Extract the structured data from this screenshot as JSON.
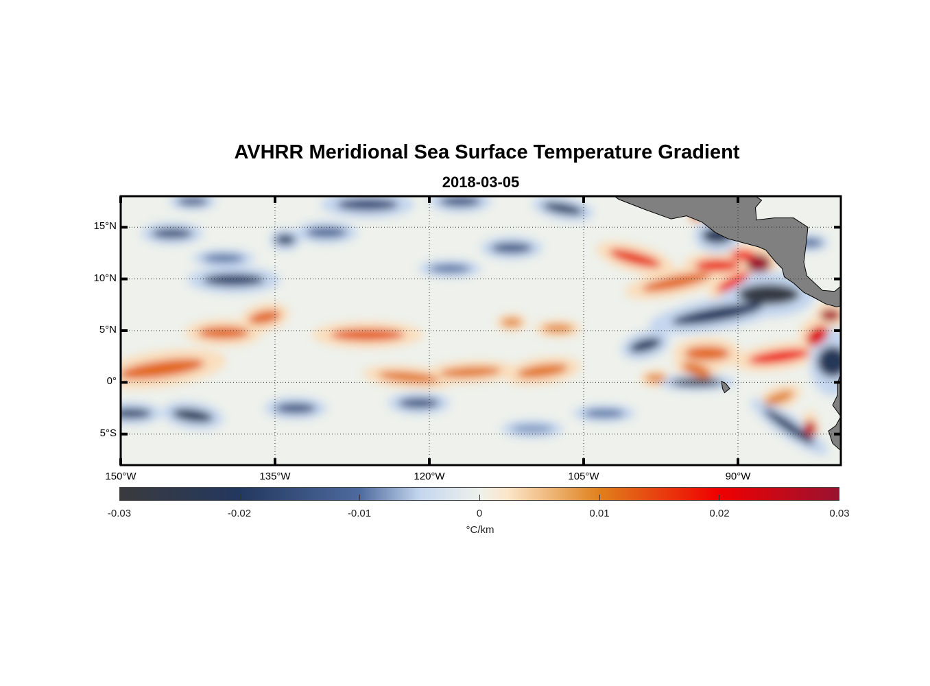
{
  "title": "AVHRR Meridional Sea Surface Temperature Gradient",
  "subtitle": "2018-03-05",
  "chart_data": {
    "type": "heatmap",
    "title": "AVHRR Meridional Sea Surface Temperature Gradient",
    "subtitle": "2018-03-05",
    "lon_range": [
      -150,
      -80
    ],
    "lat_range": [
      -8,
      18
    ],
    "x_ticks": [
      {
        "lon": -150,
        "label": "150°W"
      },
      {
        "lon": -135,
        "label": "135°W"
      },
      {
        "lon": -120,
        "label": "120°W"
      },
      {
        "lon": -105,
        "label": "105°W"
      },
      {
        "lon": -90,
        "label": "90°W"
      }
    ],
    "y_ticks": [
      {
        "lat": 15,
        "label": "15°N"
      },
      {
        "lat": 10,
        "label": "10°N"
      },
      {
        "lat": 5,
        "label": "5°N"
      },
      {
        "lat": 0,
        "label": "0°"
      },
      {
        "lat": -5,
        "label": "5°S"
      }
    ],
    "grid": true,
    "colorbar": {
      "range": [
        -0.03,
        0.03
      ],
      "ticks": [
        -0.03,
        -0.02,
        -0.01,
        0,
        0.01,
        0.02,
        0.03
      ],
      "tick_labels": [
        "-0.03",
        "-0.02",
        "-0.01",
        "0",
        "0.01",
        "0.02",
        "0.03"
      ],
      "units": "°C/km",
      "stops": [
        {
          "v": -0.03,
          "c": "#3a3a3e"
        },
        {
          "v": -0.02,
          "c": "#23385f"
        },
        {
          "v": -0.01,
          "c": "#4d6a9e"
        },
        {
          "v": -0.005,
          "c": "#c4d6ee"
        },
        {
          "v": 0,
          "c": "#eef1ec"
        },
        {
          "v": 0.0025,
          "c": "#fbe5c8"
        },
        {
          "v": 0.01,
          "c": "#e0801c"
        },
        {
          "v": 0.02,
          "c": "#ef0000"
        },
        {
          "v": 0.03,
          "c": "#9a1230"
        }
      ]
    },
    "features": [
      {
        "lon": -146,
        "lat": 1.3,
        "rlon": 4.2,
        "rlat": 0.8,
        "v": 0.012,
        "rot": -8
      },
      {
        "lon": -140,
        "lat": 4.8,
        "rlon": 2.5,
        "rlat": 0.6,
        "v": 0.012,
        "rot": 0
      },
      {
        "lon": -136,
        "lat": 6.3,
        "rlon": 1.6,
        "rlat": 0.6,
        "v": 0.012,
        "rot": -12
      },
      {
        "lon": -126,
        "lat": 4.6,
        "rlon": 3.6,
        "rlat": 0.6,
        "v": 0.013,
        "rot": 0
      },
      {
        "lon": -122,
        "lat": 0.5,
        "rlon": 3,
        "rlat": 0.5,
        "v": 0.011,
        "rot": 5
      },
      {
        "lon": -116,
        "lat": 1.0,
        "rlon": 3,
        "rlat": 0.5,
        "v": 0.011,
        "rot": -3
      },
      {
        "lon": -109,
        "lat": 1.1,
        "rlon": 2.5,
        "rlat": 0.6,
        "v": 0.011,
        "rot": -8
      },
      {
        "lon": -112,
        "lat": 5.8,
        "rlon": 1,
        "rlat": 0.4,
        "v": 0.01,
        "rot": 0
      },
      {
        "lon": -107.5,
        "lat": 5.2,
        "rlon": 1.5,
        "rlat": 0.4,
        "v": 0.01,
        "rot": 0
      },
      {
        "lon": -100,
        "lat": 12.0,
        "rlon": 2.6,
        "rlat": 0.6,
        "v": 0.016,
        "rot": 15
      },
      {
        "lon": -96,
        "lat": 9.7,
        "rlon": 3.4,
        "rlat": 0.6,
        "v": 0.012,
        "rot": -12
      },
      {
        "lon": -92,
        "lat": 11.3,
        "rlon": 2.2,
        "rlat": 0.6,
        "v": 0.017,
        "rot": 0
      },
      {
        "lon": -90.5,
        "lat": 9.7,
        "rlon": 1.8,
        "rlat": 0.5,
        "v": 0.02,
        "rot": -30
      },
      {
        "lon": -88,
        "lat": 11.5,
        "rlon": 1.2,
        "rlat": 0.9,
        "v": 0.03,
        "rot": 0
      },
      {
        "lon": -89.5,
        "lat": 12.3,
        "rlon": 1.2,
        "rlat": 0.5,
        "v": 0.02,
        "rot": 0
      },
      {
        "lon": -86,
        "lat": 2.5,
        "rlon": 3,
        "rlat": 0.6,
        "v": 0.02,
        "rot": -8
      },
      {
        "lon": -82.3,
        "lat": 4.5,
        "rlon": 1.2,
        "rlat": 0.8,
        "v": 0.022,
        "rot": -40
      },
      {
        "lon": -81,
        "lat": 6.5,
        "rlon": 1,
        "rlat": 0.6,
        "v": 0.028,
        "rot": 0
      },
      {
        "lon": -93,
        "lat": 2.8,
        "rlon": 2.2,
        "rlat": 0.7,
        "v": 0.012,
        "rot": 0
      },
      {
        "lon": -94,
        "lat": 1.2,
        "rlon": 1.5,
        "rlat": 0.6,
        "v": 0.011,
        "rot": 20
      },
      {
        "lon": -83,
        "lat": -4.5,
        "rlon": 0.6,
        "rlat": 0.8,
        "v": 0.025,
        "rot": 0
      },
      {
        "lon": -94,
        "lat": 16.0,
        "rlon": 0.6,
        "rlat": 0.3,
        "v": 0.025,
        "rot": 0
      },
      {
        "lon": -98,
        "lat": 0.4,
        "rlon": 1,
        "rlat": 0.4,
        "v": 0.01,
        "rot": 0
      },
      {
        "lon": -86,
        "lat": -1.5,
        "rlon": 1.5,
        "rlat": 0.5,
        "v": 0.01,
        "rot": -20
      },
      {
        "lon": -87,
        "lat": 8.5,
        "rlon": 3,
        "rlat": 1.0,
        "v": -0.028,
        "rot": 0
      },
      {
        "lon": -92,
        "lat": 6.6,
        "rlon": 4.5,
        "rlat": 0.7,
        "v": -0.02,
        "rot": -10
      },
      {
        "lon": -94,
        "lat": 0.0,
        "rlon": 2.5,
        "rlat": 0.4,
        "v": -0.026,
        "rot": 0
      },
      {
        "lon": -99,
        "lat": 3.6,
        "rlon": 1.6,
        "rlat": 0.6,
        "v": -0.02,
        "rot": -15
      },
      {
        "lon": -85,
        "lat": -4.3,
        "rlon": 3,
        "rlat": 0.5,
        "v": -0.02,
        "rot": 35
      },
      {
        "lon": -80.8,
        "lat": 2.0,
        "rlon": 1.5,
        "rlat": 1.5,
        "v": -0.022,
        "rot": 0
      },
      {
        "lon": -92,
        "lat": 14.2,
        "rlon": 1.5,
        "rlat": 0.8,
        "v": -0.022,
        "rot": 0
      },
      {
        "lon": -143,
        "lat": -3.2,
        "rlon": 2,
        "rlat": 0.6,
        "v": -0.022,
        "rot": 8
      },
      {
        "lon": -149,
        "lat": -3.0,
        "rlon": 2,
        "rlat": 0.5,
        "v": -0.018,
        "rot": 0
      },
      {
        "lon": -121,
        "lat": -2.0,
        "rlon": 2,
        "rlat": 0.5,
        "v": -0.015,
        "rot": 0
      },
      {
        "lon": -133,
        "lat": -2.5,
        "rlon": 2,
        "rlat": 0.5,
        "v": -0.015,
        "rot": 0
      },
      {
        "lon": -145,
        "lat": 14.4,
        "rlon": 2,
        "rlat": 0.5,
        "v": -0.016,
        "rot": 0
      },
      {
        "lon": -134,
        "lat": 13.8,
        "rlon": 1,
        "rlat": 0.5,
        "v": -0.02,
        "rot": 0
      },
      {
        "lon": -139,
        "lat": 9.9,
        "rlon": 3,
        "rlat": 0.6,
        "v": -0.018,
        "rot": 0
      },
      {
        "lon": -126,
        "lat": 17.2,
        "rlon": 3,
        "rlat": 0.6,
        "v": -0.016,
        "rot": 0
      },
      {
        "lon": -117,
        "lat": 17.5,
        "rlon": 2,
        "rlat": 0.5,
        "v": -0.015,
        "rot": 0
      },
      {
        "lon": -107,
        "lat": 16.8,
        "rlon": 2,
        "rlat": 0.5,
        "v": -0.02,
        "rot": 10
      },
      {
        "lon": -130,
        "lat": 14.5,
        "rlon": 2,
        "rlat": 0.5,
        "v": -0.012,
        "rot": 0
      },
      {
        "lon": -112,
        "lat": 13.0,
        "rlon": 2,
        "rlat": 0.5,
        "v": -0.015,
        "rot": 0
      },
      {
        "lon": -143,
        "lat": 17.5,
        "rlon": 1.5,
        "rlat": 0.4,
        "v": -0.015,
        "rot": 0
      },
      {
        "lon": -118,
        "lat": 11.0,
        "rlon": 2,
        "rlat": 0.4,
        "v": -0.01,
        "rot": 0
      },
      {
        "lon": -103,
        "lat": -3.0,
        "rlon": 2,
        "rlat": 0.4,
        "v": -0.01,
        "rot": 0
      },
      {
        "lon": -140,
        "lat": 12.0,
        "rlon": 2,
        "rlat": 0.4,
        "v": -0.01,
        "rot": 0
      },
      {
        "lon": -110,
        "lat": -4.5,
        "rlon": 2,
        "rlat": 0.4,
        "v": -0.008,
        "rot": 0
      },
      {
        "lon": -83,
        "lat": 13.5,
        "rlon": 1.2,
        "rlat": 0.4,
        "v": -0.012,
        "rot": 0
      }
    ],
    "land": [
      {
        "name": "central-america",
        "coords": [
          [
            -102,
            18
          ],
          [
            -101.6,
            17.7
          ],
          [
            -99,
            16.7
          ],
          [
            -96.5,
            15.8
          ],
          [
            -95,
            16.1
          ],
          [
            -93.5,
            15.5
          ],
          [
            -92.2,
            14.5
          ],
          [
            -91,
            13.9
          ],
          [
            -89.5,
            13.5
          ],
          [
            -88,
            13.1
          ],
          [
            -87.3,
            12.8
          ],
          [
            -86.3,
            11.6
          ],
          [
            -85.7,
            11
          ],
          [
            -85.5,
            10.2
          ],
          [
            -84.6,
            9.6
          ],
          [
            -83.6,
            8.7
          ],
          [
            -82.6,
            8.2
          ],
          [
            -81.5,
            7.6
          ],
          [
            -80.4,
            7.3
          ],
          [
            -80,
            7.4
          ],
          [
            -80,
            9.3
          ],
          [
            -80.6,
            8.8
          ],
          [
            -81.8,
            8.9
          ],
          [
            -83.3,
            10.3
          ],
          [
            -83.6,
            11.6
          ],
          [
            -83.4,
            13.2
          ],
          [
            -83.2,
            15
          ],
          [
            -84.6,
            15.9
          ],
          [
            -86.5,
            15.9
          ],
          [
            -88.2,
            15.7
          ],
          [
            -88.3,
            16.9
          ],
          [
            -87.7,
            17.6
          ],
          [
            -88.3,
            18
          ],
          [
            -102,
            18
          ]
        ]
      },
      {
        "name": "galapagos",
        "coords": [
          [
            -91.6,
            0.1
          ],
          [
            -91.2,
            -0.1
          ],
          [
            -90.8,
            -0.6
          ],
          [
            -91.3,
            -1.0
          ],
          [
            -91.5,
            -0.6
          ]
        ]
      },
      {
        "name": "south-america",
        "coords": [
          [
            -80,
            0.8
          ],
          [
            -80.3,
            0
          ],
          [
            -80.3,
            -1.2
          ],
          [
            -80.8,
            -2.2
          ],
          [
            -80,
            -3.3
          ],
          [
            -80.5,
            -4.2
          ],
          [
            -81.2,
            -4.7
          ],
          [
            -80.8,
            -5.9
          ],
          [
            -80,
            -6.6
          ],
          [
            -80,
            0.8
          ]
        ]
      }
    ]
  }
}
